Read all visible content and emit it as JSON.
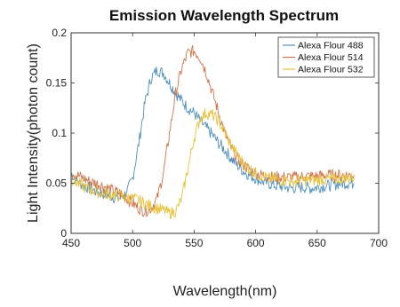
{
  "chart_data": {
    "type": "line",
    "title": "Emission Wavelength Spectrum",
    "xlabel": "Wavelength(nm)",
    "ylabel": "Light Intensity(photon count)",
    "xlim": [
      450,
      700
    ],
    "ylim": [
      0,
      0.2
    ],
    "xticks": [
      450,
      500,
      550,
      600,
      650,
      700
    ],
    "yticks": [
      0,
      0.05,
      0.1,
      0.15,
      0.2
    ],
    "xtick_labels": [
      "450",
      "500",
      "550",
      "600",
      "650",
      "700"
    ],
    "ytick_labels": [
      "0",
      "0.05",
      "0.1",
      "0.15",
      "0.2"
    ],
    "grid": false,
    "legend_position": "top-right",
    "series": [
      {
        "name": "Alexa Flour 488",
        "color": "#4f8fc0",
        "x": [
          450,
          455,
          460,
          465,
          470,
          475,
          480,
          485,
          490,
          495,
          500,
          505,
          510,
          515,
          520,
          525,
          530,
          535,
          540,
          545,
          550,
          555,
          560,
          565,
          570,
          575,
          580,
          585,
          590,
          595,
          600,
          605,
          610,
          615,
          620,
          625,
          630,
          635,
          640,
          645,
          650,
          655,
          660,
          665,
          670,
          675,
          680
        ],
        "y": [
          0.06,
          0.052,
          0.048,
          0.045,
          0.042,
          0.04,
          0.038,
          0.036,
          0.035,
          0.04,
          0.055,
          0.09,
          0.13,
          0.155,
          0.163,
          0.16,
          0.15,
          0.14,
          0.132,
          0.125,
          0.12,
          0.112,
          0.105,
          0.098,
          0.09,
          0.083,
          0.075,
          0.068,
          0.062,
          0.058,
          0.055,
          0.052,
          0.05,
          0.048,
          0.047,
          0.046,
          0.045,
          0.046,
          0.046,
          0.045,
          0.046,
          0.047,
          0.048,
          0.049,
          0.05,
          0.05,
          0.05
        ]
      },
      {
        "name": "Alexa Flour 514",
        "color": "#d2744a",
        "x": [
          450,
          455,
          460,
          465,
          470,
          475,
          480,
          485,
          490,
          495,
          500,
          505,
          510,
          515,
          520,
          525,
          530,
          535,
          540,
          545,
          550,
          555,
          560,
          565,
          570,
          575,
          580,
          585,
          590,
          595,
          600,
          605,
          610,
          615,
          620,
          625,
          630,
          635,
          640,
          645,
          650,
          655,
          660,
          665,
          670,
          675,
          680
        ],
        "y": [
          0.062,
          0.058,
          0.055,
          0.052,
          0.05,
          0.048,
          0.045,
          0.042,
          0.04,
          0.035,
          0.03,
          0.025,
          0.022,
          0.025,
          0.035,
          0.06,
          0.1,
          0.14,
          0.165,
          0.18,
          0.182,
          0.175,
          0.16,
          0.14,
          0.12,
          0.1,
          0.085,
          0.075,
          0.068,
          0.064,
          0.06,
          0.058,
          0.057,
          0.056,
          0.056,
          0.056,
          0.056,
          0.056,
          0.057,
          0.057,
          0.057,
          0.058,
          0.058,
          0.058,
          0.058,
          0.058,
          0.058
        ]
      },
      {
        "name": "Alexa Flour 532",
        "color": "#e8c23a",
        "x": [
          450,
          455,
          460,
          465,
          470,
          475,
          480,
          485,
          490,
          495,
          500,
          505,
          510,
          515,
          520,
          525,
          530,
          535,
          540,
          545,
          550,
          555,
          560,
          565,
          570,
          575,
          580,
          585,
          590,
          595,
          600,
          605,
          610,
          615,
          620,
          625,
          630,
          635,
          640,
          645,
          650,
          655,
          660,
          665,
          670,
          675,
          680
        ],
        "y": [
          0.055,
          0.05,
          0.047,
          0.044,
          0.042,
          0.04,
          0.039,
          0.038,
          0.037,
          0.036,
          0.035,
          0.033,
          0.03,
          0.027,
          0.025,
          0.023,
          0.02,
          0.022,
          0.035,
          0.065,
          0.095,
          0.115,
          0.12,
          0.118,
          0.112,
          0.1,
          0.088,
          0.078,
          0.07,
          0.064,
          0.06,
          0.057,
          0.055,
          0.054,
          0.053,
          0.053,
          0.052,
          0.052,
          0.053,
          0.053,
          0.053,
          0.054,
          0.054,
          0.054,
          0.055,
          0.055,
          0.055
        ]
      }
    ]
  }
}
